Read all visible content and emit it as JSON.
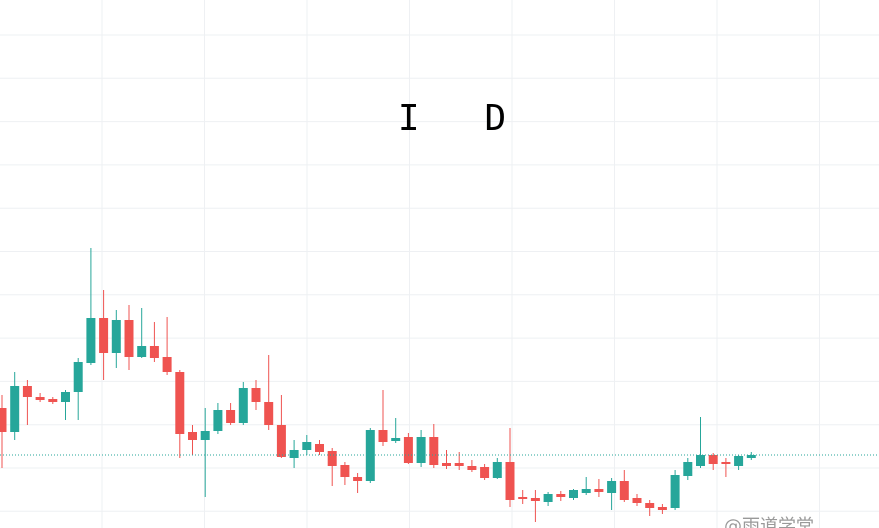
{
  "chart_data": {
    "type": "candlestick",
    "title": "I   D",
    "watermark": "@雨道学堂",
    "ylim": [
      0,
      528
    ],
    "grid": true,
    "up_color": "#26a69a",
    "down_color": "#ef5350",
    "last_price_line": true,
    "open": [
      120,
      96,
      142,
      131,
      129,
      126,
      136,
      165,
      210,
      175,
      208,
      171,
      182,
      171,
      156,
      96,
      88,
      97,
      118,
      105,
      140,
      126,
      103,
      70,
      78,
      84,
      77,
      63,
      51,
      47,
      98,
      87,
      91,
      65,
      91,
      65,
      65,
      62,
      61,
      50,
      66,
      31,
      30,
      26,
      34,
      30,
      35,
      39,
      35,
      47,
      30,
      25,
      21,
      20,
      52,
      62,
      73,
      66,
      62,
      70
    ],
    "high": [
      133,
      156,
      148,
      135,
      131,
      138,
      170,
      280,
      238,
      218,
      223,
      220,
      206,
      211,
      158,
      103,
      120,
      125,
      125,
      146,
      148,
      173,
      133,
      88,
      93,
      88,
      80,
      66,
      55,
      100,
      138,
      110,
      95,
      98,
      104,
      78,
      76,
      68,
      64,
      70,
      100,
      38,
      38,
      36,
      37,
      39,
      51,
      49,
      50,
      58,
      34,
      28,
      24,
      58,
      70,
      111,
      75,
      70,
      73,
      76
    ],
    "low": [
      60,
      88,
      103,
      126,
      124,
      108,
      108,
      163,
      148,
      160,
      158,
      170,
      166,
      153,
      70,
      73,
      31,
      94,
      103,
      103,
      118,
      98,
      70,
      60,
      73,
      73,
      42,
      43,
      35,
      45,
      82,
      85,
      64,
      61,
      60,
      59,
      58,
      56,
      48,
      49,
      21,
      24,
      6,
      22,
      27,
      28,
      33,
      31,
      18,
      26,
      22,
      12,
      14,
      18,
      48,
      60,
      58,
      51,
      58,
      68
    ],
    "close": [
      96,
      142,
      131,
      128,
      126,
      136,
      166,
      210,
      175,
      208,
      171,
      182,
      170,
      156,
      94,
      88,
      97,
      118,
      105,
      140,
      126,
      103,
      71,
      78,
      86,
      76,
      62,
      51,
      47,
      98,
      86,
      90,
      65,
      91,
      63,
      62,
      62,
      58,
      50,
      66,
      28,
      29,
      27,
      34,
      31,
      38,
      39,
      36,
      47,
      28,
      25,
      20,
      18,
      53,
      66,
      73,
      64,
      64,
      72,
      73
    ]
  }
}
